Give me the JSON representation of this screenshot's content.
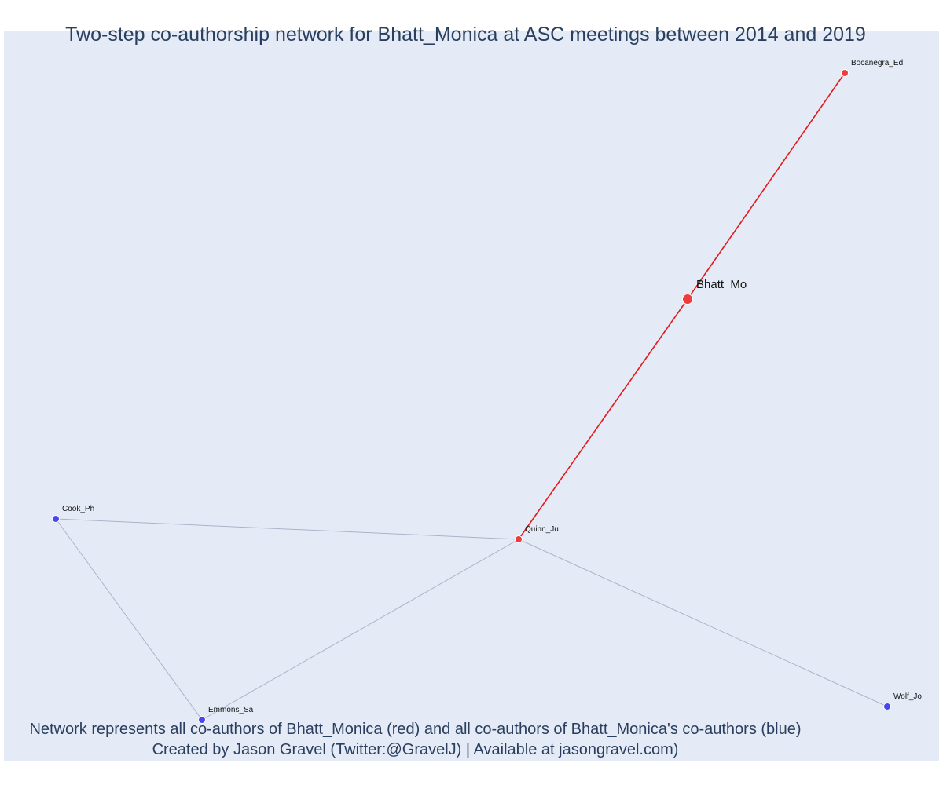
{
  "title": "Two-step co-authorship network for Bhatt_Monica at ASC meetings between 2014 and 2019",
  "caption": {
    "line1": "Network represents all co-authors of Bhatt_Monica (red) and all co-authors of Bhatt_Monica's co-authors (blue)",
    "line2": "Created by Jason Gravel (Twitter:@GravelJ) | Available at jasongravel.com)"
  },
  "colors": {
    "background": "#e5ebf6",
    "first_step": "#ef3b3b",
    "second_step": "#4747ef",
    "first_step_edge": "#e31a1c",
    "second_step_edge": "#b0b0c8",
    "title_text": "#2a3f5f"
  },
  "chart_data": {
    "type": "network",
    "focal_author": "Bhatt_Mo",
    "nodes": [
      {
        "id": "Bhatt_Mo",
        "group": "focal"
      },
      {
        "id": "Bocanegra_Ed",
        "group": "co-author"
      },
      {
        "id": "Quinn_Ju",
        "group": "co-author"
      },
      {
        "id": "Cook_Ph",
        "group": "co-author-of-co-author"
      },
      {
        "id": "Emmons_Sa",
        "group": "co-author-of-co-author"
      },
      {
        "id": "Wolf_Jo",
        "group": "co-author-of-co-author"
      }
    ],
    "edges": [
      {
        "source": "Bhatt_Mo",
        "target": "Bocanegra_Ed",
        "group": "first-step"
      },
      {
        "source": "Bhatt_Mo",
        "target": "Quinn_Ju",
        "group": "first-step"
      },
      {
        "source": "Quinn_Ju",
        "target": "Cook_Ph",
        "group": "second-step"
      },
      {
        "source": "Quinn_Ju",
        "target": "Emmons_Sa",
        "group": "second-step"
      },
      {
        "source": "Quinn_Ju",
        "target": "Wolf_Jo",
        "group": "second-step"
      },
      {
        "source": "Cook_Ph",
        "target": "Emmons_Sa",
        "group": "second-step"
      }
    ]
  }
}
